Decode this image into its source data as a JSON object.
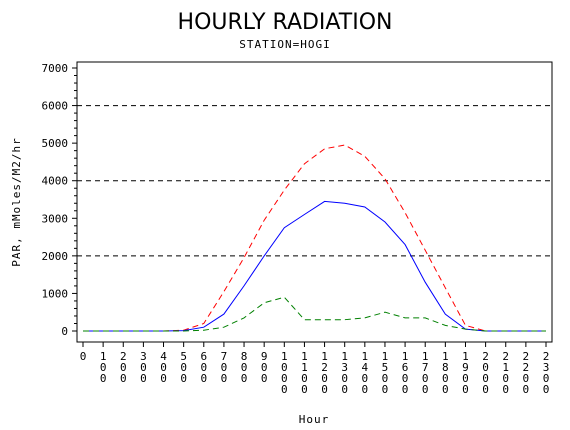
{
  "chart_data": {
    "type": "line",
    "title": "HOURLY RADIATION",
    "subtitle": "STATION=HOGI",
    "xlabel": "Hour",
    "ylabel": "PAR, mMoles/M2/hr",
    "xlim": [
      0,
      2300
    ],
    "ylim": [
      0,
      7000
    ],
    "x_ticks": [
      "0",
      "100",
      "200",
      "300",
      "400",
      "500",
      "600",
      "700",
      "800",
      "900",
      "1000",
      "1100",
      "1200",
      "1300",
      "1400",
      "1500",
      "1600",
      "1700",
      "1800",
      "1900",
      "2000",
      "2100",
      "2200",
      "2300"
    ],
    "y_ticks": [
      0,
      1000,
      2000,
      3000,
      4000,
      5000,
      6000,
      7000
    ],
    "reference_lines": [
      2000,
      4000,
      6000
    ],
    "x": [
      0,
      100,
      200,
      300,
      400,
      500,
      600,
      700,
      800,
      900,
      1000,
      1100,
      1200,
      1300,
      1400,
      1500,
      1600,
      1700,
      1800,
      1900,
      2000,
      2100,
      2200,
      2300
    ],
    "series": [
      {
        "color": "#ff0000",
        "dash": "dashed",
        "values": [
          0,
          0,
          0,
          0,
          0,
          20,
          200,
          1050,
          1950,
          2950,
          3750,
          4450,
          4850,
          4950,
          4650,
          4050,
          3150,
          2150,
          1150,
          150,
          0,
          0,
          0,
          0
        ]
      },
      {
        "color": "#0000ff",
        "dash": "solid",
        "values": [
          0,
          0,
          0,
          0,
          0,
          10,
          100,
          450,
          1200,
          2000,
          2750,
          3100,
          3450,
          3400,
          3300,
          2900,
          2300,
          1300,
          450,
          50,
          0,
          0,
          0,
          0
        ]
      },
      {
        "color": "#008000",
        "dash": "dashed",
        "values": [
          0,
          0,
          0,
          0,
          0,
          0,
          20,
          100,
          350,
          750,
          900,
          300,
          300,
          300,
          350,
          500,
          350,
          350,
          150,
          50,
          0,
          0,
          0,
          0
        ]
      }
    ],
    "grid": false,
    "legend": "none"
  }
}
